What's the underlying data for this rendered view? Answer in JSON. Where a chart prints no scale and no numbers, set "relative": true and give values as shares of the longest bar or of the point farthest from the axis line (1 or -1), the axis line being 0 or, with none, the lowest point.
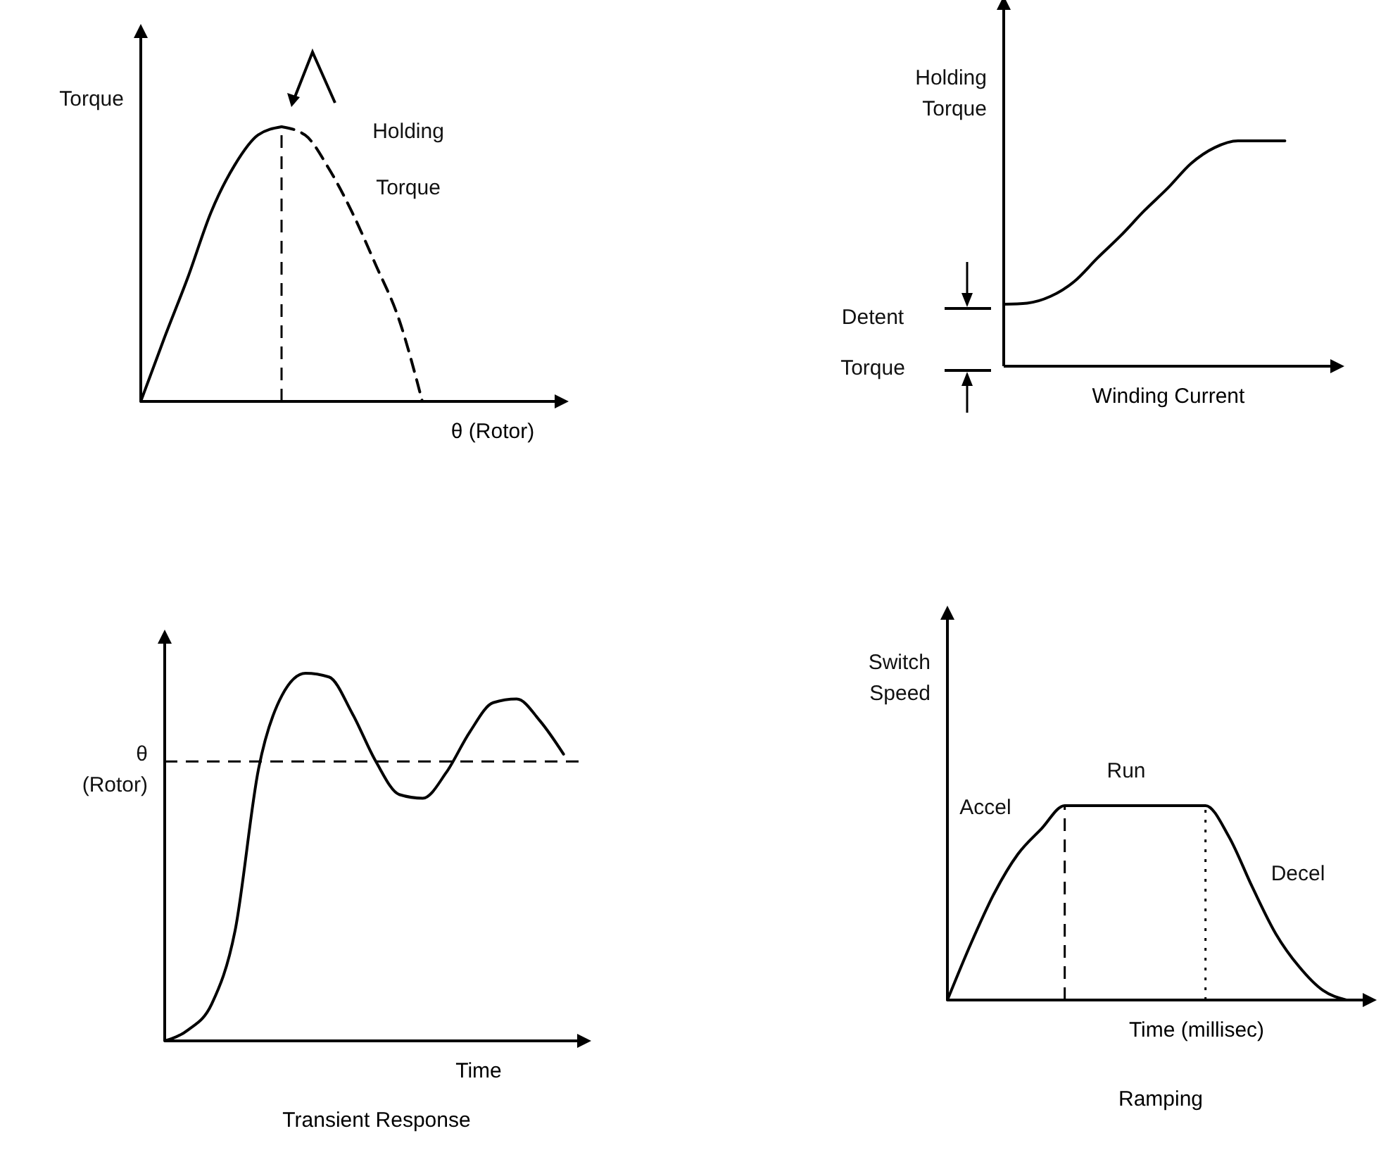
{
  "chart_data": [
    {
      "type": "line",
      "ylabel": "Torque",
      "xlabel": "θ (Rotor)",
      "relative": true,
      "categories": [
        null,
        null,
        null,
        null,
        null,
        null,
        null,
        null,
        null,
        null,
        null,
        null,
        null,
        null,
        null,
        null,
        null,
        null,
        null
      ],
      "series": [
        {
          "color": "#000000",
          "line_style": "solid",
          "values": [
            0,
            0.23,
            0.45,
            0.69,
            0.86,
            0.97,
            1,
            null,
            null,
            null,
            null,
            null,
            null,
            null,
            null,
            null,
            null,
            null,
            null
          ]
        },
        {
          "color": "#000000",
          "line_style": "dashed",
          "values": [
            null,
            null,
            null,
            null,
            null,
            null,
            1,
            0.97,
            0.85,
            0.69,
            0.5,
            0.3,
            0,
            null,
            null,
            null,
            null,
            null,
            null
          ]
        }
      ],
      "annotations": [
        "Holding Torque"
      ]
    },
    {
      "type": "line",
      "ylabel": "Holding Torque",
      "xlabel": "Winding Current",
      "relative": true,
      "categories": [
        null,
        null,
        null,
        null,
        null,
        null,
        null,
        null,
        null,
        null,
        null,
        null,
        null,
        null,
        null
      ],
      "series": [
        {
          "color": "#000000",
          "line_style": "solid",
          "values": [
            0.275,
            0.28,
            0.31,
            0.375,
            0.48,
            0.58,
            0.69,
            0.79,
            0.9,
            0.97,
            1,
            1,
            1,
            null,
            null
          ]
        }
      ],
      "annotations": [
        "Detent Torque"
      ]
    },
    {
      "type": "line",
      "title": "Transient Response",
      "ylabel": "θ (Rotor)",
      "xlabel": "Time",
      "relative": true,
      "categories": [
        null,
        null,
        null,
        null,
        null,
        null,
        null,
        null,
        null,
        null,
        null,
        null,
        null,
        null,
        null,
        null,
        null,
        null,
        null
      ],
      "series": [
        {
          "color": "#000000",
          "line_style": "solid",
          "values": [
            0,
            0.03,
            0.1,
            0.3,
            0.74,
            0.94,
            1,
            0.99,
            0.89,
            0.76,
            0.67,
            0.66,
            0.73,
            0.84,
            0.92,
            0.93,
            0.87,
            0.78,
            null
          ]
        }
      ],
      "ref_lines": [
        {
          "axis": "y",
          "value": 0.76,
          "color": "#000000",
          "line_style": "dashed"
        }
      ]
    },
    {
      "type": "line",
      "title": "Ramping",
      "ylabel": "Switch Speed",
      "xlabel": "Time (millisec)",
      "relative": true,
      "categories": [
        null,
        null,
        null,
        null,
        null,
        null,
        null,
        null,
        null,
        null,
        null,
        null,
        null,
        null,
        null,
        null,
        null,
        null,
        null
      ],
      "series": [
        {
          "color": "#000000",
          "line_style": "solid",
          "values": [
            0,
            0.29,
            0.55,
            0.75,
            0.88,
            1,
            1,
            1,
            1,
            1,
            1,
            1,
            0.84,
            0.58,
            0.34,
            0.17,
            0.05,
            0,
            null
          ]
        }
      ],
      "annotations": [
        "Accel",
        "Run",
        "Decel"
      ]
    }
  ]
}
